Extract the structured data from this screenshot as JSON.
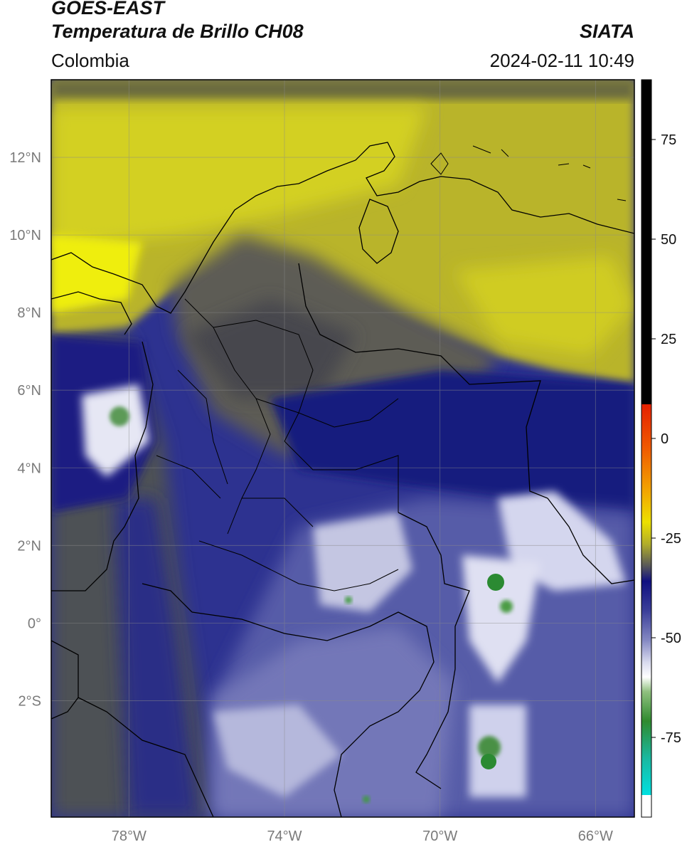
{
  "header": {
    "satellite": "GOES-EAST",
    "product": "Temperatura de Brillo CH08",
    "region": "Colombia",
    "brand": "SIATA",
    "datetime": "2024-02-11 10:49"
  },
  "map": {
    "lon_range": [
      -80,
      -65
    ],
    "lat_range": [
      -5,
      14
    ],
    "lon_ticks": [
      "78°W",
      "74°W",
      "70°W",
      "66°W"
    ],
    "lat_ticks": [
      "12°N",
      "10°N",
      "8°N",
      "6°N",
      "4°N",
      "2°N",
      "0°",
      "2°S"
    ],
    "grid": true
  },
  "colorbar": {
    "range": [
      -95,
      90
    ],
    "ticks": [
      "75",
      "50",
      "25",
      "0",
      "-25",
      "-50",
      "-75"
    ]
  }
}
